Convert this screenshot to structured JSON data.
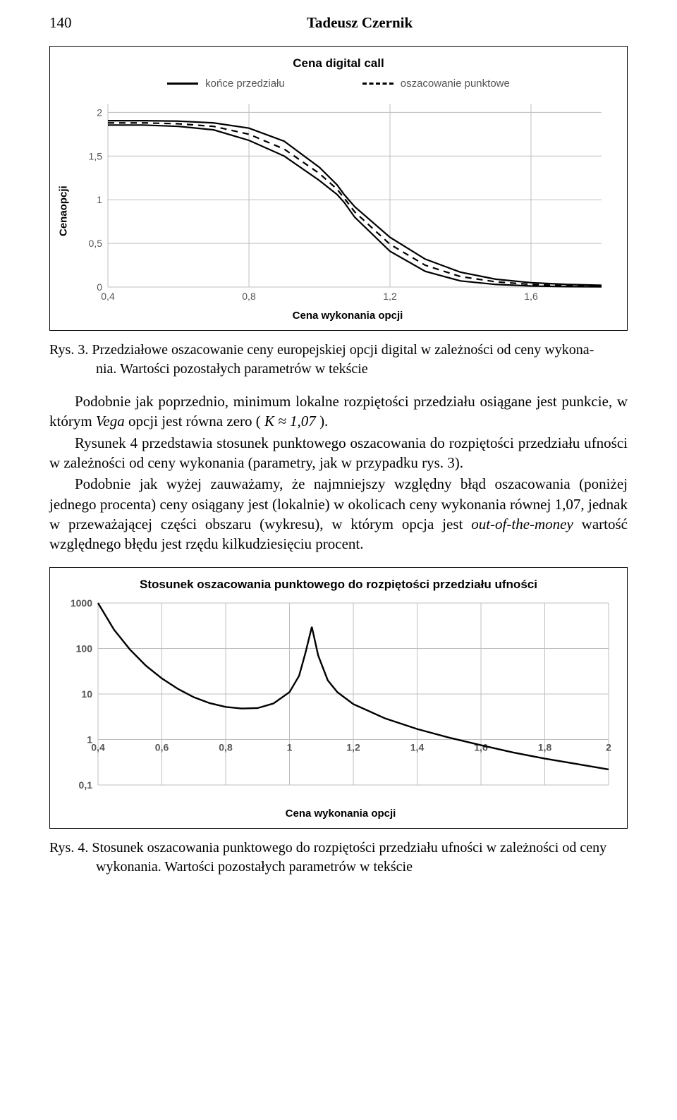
{
  "header": {
    "page_number": "140",
    "author": "Tadeusz Czernik"
  },
  "chart1": {
    "type": "line",
    "title": "Cena digital call",
    "legend": {
      "a": "końce przedziału",
      "b": "oszacowanie punktowe"
    },
    "ylabel": "Cenaopcji",
    "xlabel": "Cena wykonania opcji",
    "x_ticks": [
      "0,4",
      "0,8",
      "1,2",
      "1,6"
    ],
    "y_ticks": [
      "0",
      "0,5",
      "1",
      "1,5",
      "2"
    ],
    "xlim": [
      0.4,
      1.8
    ],
    "ylim": [
      0,
      2.1
    ],
    "grid_color": "#bfbfbf",
    "line_color": "#000000",
    "background": "#ffffff",
    "series": {
      "upper": [
        [
          0.4,
          1.905
        ],
        [
          0.5,
          1.905
        ],
        [
          0.6,
          1.9
        ],
        [
          0.7,
          1.88
        ],
        [
          0.8,
          1.82
        ],
        [
          0.9,
          1.67
        ],
        [
          1.0,
          1.37
        ],
        [
          1.05,
          1.17
        ],
        [
          1.07,
          1.06
        ],
        [
          1.1,
          0.92
        ],
        [
          1.2,
          0.57
        ],
        [
          1.3,
          0.32
        ],
        [
          1.4,
          0.17
        ],
        [
          1.5,
          0.09
        ],
        [
          1.6,
          0.05
        ],
        [
          1.7,
          0.03
        ],
        [
          1.8,
          0.02
        ]
      ],
      "mid": [
        [
          0.4,
          1.88
        ],
        [
          0.5,
          1.88
        ],
        [
          0.6,
          1.87
        ],
        [
          0.7,
          1.84
        ],
        [
          0.8,
          1.75
        ],
        [
          0.9,
          1.58
        ],
        [
          1.0,
          1.3
        ],
        [
          1.05,
          1.12
        ],
        [
          1.07,
          1.02
        ],
        [
          1.1,
          0.86
        ],
        [
          1.2,
          0.49
        ],
        [
          1.3,
          0.25
        ],
        [
          1.4,
          0.12
        ],
        [
          1.5,
          0.06
        ],
        [
          1.6,
          0.03
        ],
        [
          1.7,
          0.015
        ],
        [
          1.8,
          0.008
        ]
      ],
      "lower": [
        [
          0.4,
          1.855
        ],
        [
          0.5,
          1.855
        ],
        [
          0.6,
          1.84
        ],
        [
          0.7,
          1.8
        ],
        [
          0.8,
          1.68
        ],
        [
          0.9,
          1.5
        ],
        [
          1.0,
          1.22
        ],
        [
          1.05,
          1.06
        ],
        [
          1.07,
          0.97
        ],
        [
          1.1,
          0.8
        ],
        [
          1.2,
          0.41
        ],
        [
          1.3,
          0.18
        ],
        [
          1.4,
          0.07
        ],
        [
          1.5,
          0.03
        ],
        [
          1.6,
          0.012
        ],
        [
          1.7,
          0.005
        ],
        [
          1.8,
          0.003
        ]
      ]
    }
  },
  "caption1": {
    "label": "Rys. 3. Przedziałowe oszacowanie ceny europejskiej opcji digital w zależności od ceny wykona-",
    "line2": "nia. Wartości pozostałych parametrów w tekście"
  },
  "para1": "Podobnie jak poprzednio, minimum lokalne rozpiętości przedziału osiągane jest punkcie, w którym ",
  "para1_ital": "Vega",
  "para1_b": " opcji jest równa zero ( ",
  "para1_c": "K ≈ 1,07",
  "para1_d": " ).",
  "para2": "Rysunek 4 przedstawia stosunek punktowego oszacowania do rozpiętości przedziału ufności w zależności od ceny wykonania (parametry, jak w przy­padku rys. 3).",
  "para3a": "Podobnie jak wyżej zauważamy, że najmniejszy względny błąd oszacowa­nia (poniżej jednego procenta) ceny osiągany jest (lokalnie) w okolicach ceny wykonania równej 1,07, jednak w przeważającej części obszaru (wykresu), w którym opcja jest ",
  "para3_ital": "out-of-the-money",
  "para3b": " wartość względnego błędu jest rzędu kil­kudziesięciu procent.",
  "chart2": {
    "type": "line",
    "scale_y": "log",
    "title": "Stosunek oszacowania punktowego do rozpiętości przedziału ufności",
    "xlabel": "Cena wykonania opcji",
    "x_ticks": [
      "0,4",
      "0,6",
      "0,8",
      "1",
      "1,2",
      "1,4",
      "1,6",
      "1,8",
      "2"
    ],
    "y_ticks": [
      "0,1",
      "1",
      "10",
      "100",
      "1000"
    ],
    "xlim": [
      0.4,
      2.0
    ],
    "ylim": [
      0.1,
      1000
    ],
    "grid_color": "#bfbfbf",
    "line_color": "#000000",
    "background": "#ffffff",
    "series": {
      "curve": [
        [
          0.4,
          1000
        ],
        [
          0.45,
          260
        ],
        [
          0.5,
          95
        ],
        [
          0.55,
          42
        ],
        [
          0.6,
          22
        ],
        [
          0.65,
          13
        ],
        [
          0.7,
          8.5
        ],
        [
          0.75,
          6.3
        ],
        [
          0.8,
          5.2
        ],
        [
          0.85,
          4.8
        ],
        [
          0.9,
          4.9
        ],
        [
          0.95,
          6.2
        ],
        [
          1.0,
          11
        ],
        [
          1.03,
          25
        ],
        [
          1.05,
          80
        ],
        [
          1.07,
          300
        ],
        [
          1.09,
          70
        ],
        [
          1.12,
          20
        ],
        [
          1.15,
          11
        ],
        [
          1.2,
          6
        ],
        [
          1.3,
          2.9
        ],
        [
          1.4,
          1.7
        ],
        [
          1.5,
          1.1
        ],
        [
          1.6,
          0.75
        ],
        [
          1.7,
          0.52
        ],
        [
          1.8,
          0.38
        ],
        [
          1.9,
          0.29
        ],
        [
          2.0,
          0.22
        ]
      ]
    }
  },
  "caption2": {
    "label": "Rys. 4. Stosunek oszacowania punktowego do rozpiętości przedziału ufności w zależności od ceny",
    "line2": "wykonania. Wartości pozostałych parametrów w tekście"
  }
}
